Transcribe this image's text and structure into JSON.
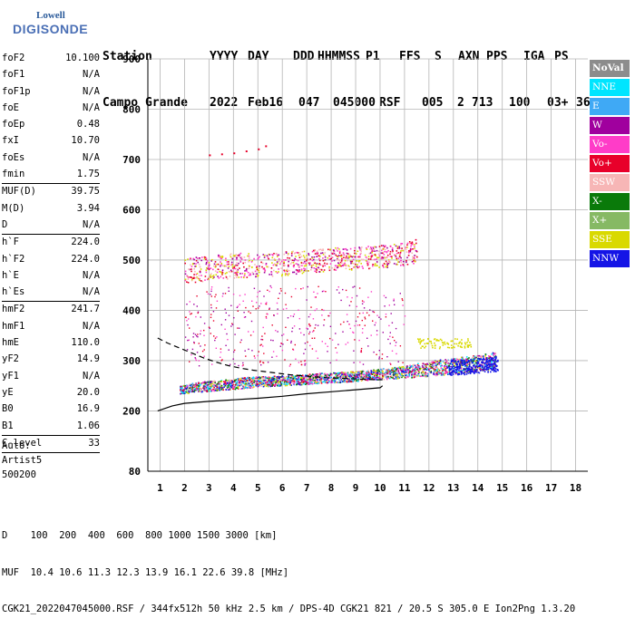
{
  "logo": {
    "line1": "Lowell",
    "line2": "DIGISONDE"
  },
  "header": {
    "labels": [
      "Station",
      "YYYY",
      "DAY",
      "DDD",
      "HHMMSS",
      "P1",
      "FFS",
      "S",
      "AXN",
      "PPS",
      "IGA",
      "PS"
    ],
    "values": [
      "Campo Grande",
      "2022",
      "Feb16",
      "047",
      "045000",
      "RSF",
      "005",
      "2",
      "713",
      "100",
      "03+",
      "36"
    ]
  },
  "params": [
    {
      "k": "foF2",
      "v": "10.100"
    },
    {
      "k": "foF1",
      "v": "N/A"
    },
    {
      "k": "foF1p",
      "v": "N/A"
    },
    {
      "k": "foE",
      "v": "N/A"
    },
    {
      "k": "foEp",
      "v": "0.48"
    },
    {
      "k": "fxI",
      "v": "10.70"
    },
    {
      "k": "foEs",
      "v": "N/A"
    },
    {
      "k": "fmin",
      "v": "1.75"
    },
    {
      "sep": true
    },
    {
      "k": "MUF(D)",
      "v": "39.75"
    },
    {
      "k": "M(D)",
      "v": "3.94"
    },
    {
      "k": "D",
      "v": "N/A"
    },
    {
      "sep": true
    },
    {
      "k": "h`F",
      "v": "224.0"
    },
    {
      "k": "h`F2",
      "v": "224.0"
    },
    {
      "k": "h`E",
      "v": "N/A"
    },
    {
      "k": "h`Es",
      "v": "N/A"
    },
    {
      "sep": true
    },
    {
      "k": "hmF2",
      "v": "241.7"
    },
    {
      "k": "hmF1",
      "v": "N/A"
    },
    {
      "k": "hmE",
      "v": "110.0"
    },
    {
      "k": "yF2",
      "v": "14.9"
    },
    {
      "k": "yF1",
      "v": "N/A"
    },
    {
      "k": "yE",
      "v": "20.0"
    },
    {
      "k": "B0",
      "v": "16.9"
    },
    {
      "k": "B1",
      "v": "1.06"
    },
    {
      "sep": true
    },
    {
      "k": "C-level",
      "v": "33"
    },
    {
      "sep": true
    }
  ],
  "auto": {
    "l1": "Auto:",
    "l2": "Artist5",
    "l3": "500200"
  },
  "legend": [
    {
      "label": "NoVal",
      "color": "#8c8c8c"
    },
    {
      "label": "NNE",
      "color": "#00e5ff"
    },
    {
      "label": "E",
      "color": "#3fa9f5"
    },
    {
      "label": "W",
      "color": "#a0009e"
    },
    {
      "label": "Vo-",
      "color": "#ff3cc8"
    },
    {
      "label": "Vo+",
      "color": "#e8002a"
    },
    {
      "label": "SSW",
      "color": "#f7b6b6"
    },
    {
      "label": "X-",
      "color": "#0a7a0a"
    },
    {
      "label": "X+",
      "color": "#86b964"
    },
    {
      "label": "SSE",
      "color": "#d9d900"
    },
    {
      "label": "NNW",
      "color": "#1414e6"
    }
  ],
  "bottom": {
    "l1": "D    100  200  400  600  800 1000 1500 3000 [km]",
    "l2": "MUF  10.4 10.6 11.3 12.3 13.9 16.1 22.6 39.8 [MHz]",
    "l3": "CGK21_2022047045000.RSF / 344fx512h 50 kHz 2.5 km / DPS-4D CGK21 821 / 20.5 S 305.0 E Ion2Png 1.3.20"
  },
  "chart_data": {
    "type": "scatter",
    "xlim": [
      0.5,
      18.5
    ],
    "ylim": [
      80,
      900
    ],
    "xticks": [
      "1",
      "2",
      "3",
      "4",
      "5",
      "6",
      "7",
      "8",
      "9",
      "10",
      "11",
      "12",
      "13",
      "14",
      "15",
      "16",
      "17",
      "18"
    ],
    "yticks": [
      "80",
      "200",
      "300",
      "400",
      "500",
      "600",
      "700",
      "800",
      "900"
    ],
    "grid": true,
    "traces": [
      {
        "name": "lower echo band",
        "x": [
          1.8,
          2.5,
          3.5,
          4.5,
          5.5,
          6.5,
          7.5,
          8.5,
          9.5,
          10.2,
          11,
          12,
          13,
          14,
          14.7
        ],
        "ymin": [
          235,
          238,
          242,
          246,
          250,
          252,
          256,
          258,
          262,
          264,
          266,
          270,
          274,
          280,
          284
        ],
        "ymax": [
          250,
          258,
          262,
          268,
          270,
          272,
          276,
          278,
          282,
          286,
          290,
          300,
          306,
          312,
          318
        ]
      },
      {
        "name": "upper echo band",
        "x": [
          2,
          3,
          4,
          5,
          6,
          7,
          8,
          9,
          10,
          11,
          11.5
        ],
        "ymin": [
          455,
          460,
          465,
          468,
          470,
          475,
          480,
          482,
          485,
          490,
          495
        ],
        "ymax": [
          505,
          510,
          515,
          515,
          518,
          520,
          525,
          528,
          530,
          535,
          545
        ]
      },
      {
        "name": "high echoes",
        "x": [
          3,
          3.5,
          4,
          4.5,
          5,
          5.3
        ],
        "y": [
          710,
          712,
          714,
          718,
          722,
          728
        ]
      }
    ],
    "curves": [
      {
        "name": "virtual height profile",
        "style": "solid",
        "x": [
          0.9,
          1.5,
          2,
          3,
          4,
          5,
          6,
          7,
          8,
          9,
          10,
          10.1
        ],
        "y": [
          200,
          210,
          215,
          219,
          222,
          225,
          229,
          234,
          238,
          242,
          246,
          250
        ]
      },
      {
        "name": "true height profile",
        "style": "dashed",
        "x": [
          0.9,
          1.3,
          1.8,
          2.3,
          2.8,
          3.3,
          3.8,
          4.3,
          4.8,
          5.3,
          5.8,
          6.3,
          6.8,
          7.3,
          7.8,
          8.3,
          8.8,
          9.3,
          9.8,
          10.1
        ],
        "y": [
          345,
          335,
          325,
          315,
          305,
          297,
          290,
          285,
          281,
          278,
          275,
          272,
          270,
          268,
          266,
          265,
          264,
          263,
          262,
          262
        ]
      }
    ]
  }
}
